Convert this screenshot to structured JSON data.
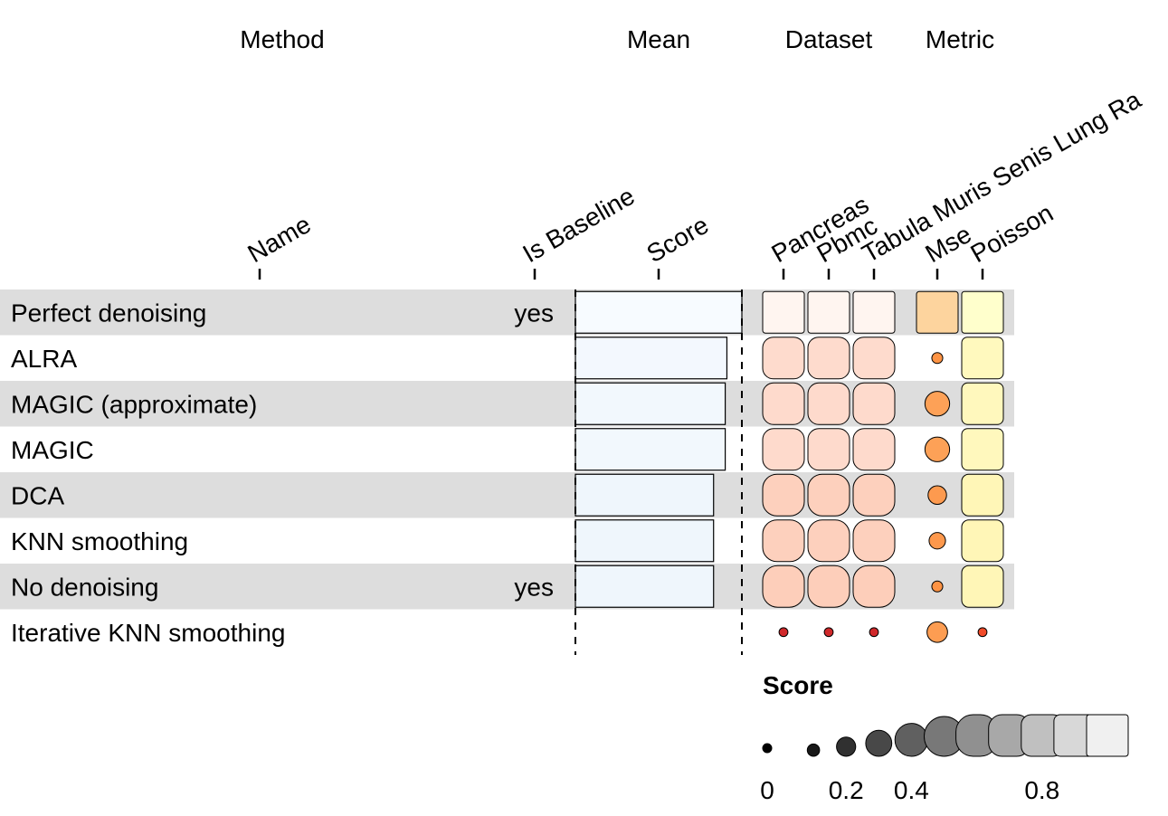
{
  "chart_data": {
    "type": "table",
    "groups": [
      {
        "id": "method",
        "label": "Method"
      },
      {
        "id": "mean",
        "label": "Mean"
      },
      {
        "id": "dataset",
        "label": "Dataset"
      },
      {
        "id": "metric",
        "label": "Metric"
      }
    ],
    "columns": [
      {
        "id": "name",
        "label": "Name",
        "group": "method",
        "kind": "text"
      },
      {
        "id": "is_baseline",
        "label": "Is Baseline",
        "group": "method",
        "kind": "text"
      },
      {
        "id": "score",
        "label": "Score",
        "group": "mean",
        "kind": "bar"
      },
      {
        "id": "pancreas",
        "label": "Pancreas",
        "group": "dataset",
        "kind": "funkyrect",
        "palette": "reds"
      },
      {
        "id": "pbmc",
        "label": "Pbmc",
        "group": "dataset",
        "kind": "funkyrect",
        "palette": "reds"
      },
      {
        "id": "tabula",
        "label": "Tabula Muris Senis Lung Ra",
        "group": "dataset",
        "kind": "funkyrect",
        "palette": "reds"
      },
      {
        "id": "mse",
        "label": "Mse",
        "group": "metric",
        "kind": "funkyrect",
        "palette": "oranges"
      },
      {
        "id": "poisson",
        "label": "Poisson",
        "group": "metric",
        "kind": "funkyrect",
        "palette": "ylorrd"
      }
    ],
    "rows": [
      {
        "name": "Perfect denoising",
        "is_baseline": "yes",
        "score": 1.0,
        "pancreas": 1.0,
        "pbmc": 1.0,
        "tabula": 1.0,
        "mse": 1.0,
        "poisson": 1.0
      },
      {
        "name": "ALRA",
        "is_baseline": "",
        "score": 0.91,
        "pancreas": 0.78,
        "pbmc": 0.78,
        "tabula": 0.78,
        "mse": 0.08,
        "poisson": 0.92
      },
      {
        "name": "MAGIC (approximate)",
        "is_baseline": "",
        "score": 0.9,
        "pancreas": 0.77,
        "pbmc": 0.77,
        "tabula": 0.77,
        "mse": 0.28,
        "poisson": 0.91
      },
      {
        "name": "MAGIC",
        "is_baseline": "",
        "score": 0.9,
        "pancreas": 0.77,
        "pbmc": 0.77,
        "tabula": 0.77,
        "mse": 0.28,
        "poisson": 0.91
      },
      {
        "name": "DCA",
        "is_baseline": "",
        "score": 0.83,
        "pancreas": 0.68,
        "pbmc": 0.68,
        "tabula": 0.68,
        "mse": 0.19,
        "poisson": 0.88
      },
      {
        "name": "KNN smoothing",
        "is_baseline": "",
        "score": 0.83,
        "pancreas": 0.68,
        "pbmc": 0.68,
        "tabula": 0.68,
        "mse": 0.16,
        "poisson": 0.88
      },
      {
        "name": "No denoising",
        "is_baseline": "yes",
        "score": 0.83,
        "pancreas": 0.66,
        "pbmc": 0.66,
        "tabula": 0.66,
        "mse": 0.08,
        "poisson": 0.88
      },
      {
        "name": "Iterative KNN smoothing",
        "is_baseline": "",
        "score": 0.0,
        "pancreas": 0.05,
        "pbmc": 0.05,
        "tabula": 0.05,
        "mse": 0.22,
        "poisson": 0.05
      }
    ],
    "legend": {
      "title": "Score",
      "steps": [
        0,
        0.1,
        0.2,
        0.3,
        0.4,
        0.5,
        0.6,
        0.7,
        0.8,
        0.9,
        1.0
      ],
      "tick_labels": [
        {
          "value": 0,
          "label": "0"
        },
        {
          "value": 0.2,
          "label": "0.2"
        },
        {
          "value": 0.4,
          "label": "0.4"
        },
        {
          "value": 0.8,
          "label": "0.8"
        }
      ]
    },
    "row_stripes": true,
    "colors": {
      "stripe": "#dddddd",
      "blues": [
        "#f7fbff",
        "#c6dbef"
      ],
      "reds": [
        "#fff5f0",
        "#fcbba1",
        "#cb181d"
      ],
      "oranges": [
        "#fdd49e",
        "#fd8d3c"
      ],
      "ylorrd": [
        "#ffffcc",
        "#fed976",
        "#f03b20"
      ],
      "greys": [
        "#000000",
        "#f0f0f0"
      ]
    }
  }
}
